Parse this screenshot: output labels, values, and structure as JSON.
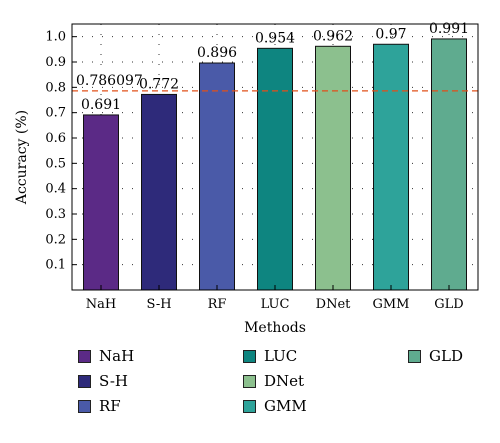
{
  "chart_data": {
    "type": "bar",
    "xlabel": "Methods",
    "ylabel": "Accuracy (%)",
    "ylim": [
      0,
      1.05
    ],
    "yticks": [
      0.1,
      0.2,
      0.3,
      0.4,
      0.5,
      0.6,
      0.7,
      0.8,
      0.9,
      1.0
    ],
    "categories": [
      "NaH",
      "S-H",
      "RF",
      "LUC",
      "DNet",
      "GMM",
      "GLD"
    ],
    "values": [
      0.691,
      0.772,
      0.896,
      0.954,
      0.962,
      0.97,
      0.991
    ],
    "value_labels": [
      "0.691",
      "0.772",
      "0.896",
      "0.954",
      "0.962",
      "0.97",
      "0.991"
    ],
    "colors": [
      "#5b2a86",
      "#2e2a7a",
      "#4a5aa8",
      "#0e8580",
      "#8cc08e",
      "#2ea39a",
      "#5fab8f"
    ],
    "reference_line": {
      "value": 0.786097,
      "label": "0.786097",
      "color": "#e0501a",
      "style": "dashed"
    },
    "grid": "dotted",
    "legend": {
      "placement": "bottom",
      "columns": 3,
      "entries": [
        "NaH",
        "S-H",
        "RF",
        "LUC",
        "DNet",
        "GMM",
        "GLD"
      ]
    }
  }
}
